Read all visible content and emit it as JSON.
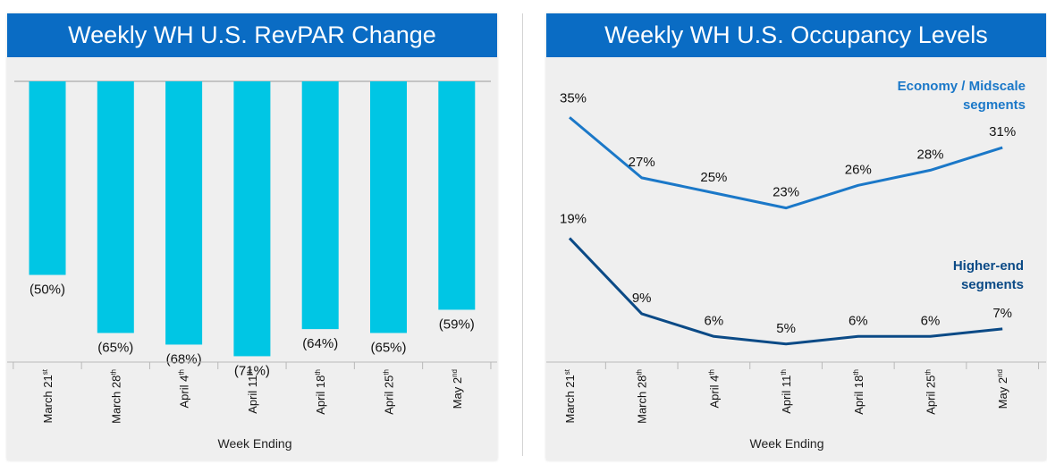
{
  "chart_data": [
    {
      "type": "bar",
      "title": "Weekly WH U.S. RevPAR Change",
      "xlabel": "Week Ending",
      "ylabel": "",
      "categories": [
        {
          "label": "March 21",
          "sup": "st"
        },
        {
          "label": "March 28",
          "sup": "th"
        },
        {
          "label": "April 4",
          "sup": "th"
        },
        {
          "label": "April 11",
          "sup": "th"
        },
        {
          "label": "April 18",
          "sup": "th"
        },
        {
          "label": "April 25",
          "sup": "th"
        },
        {
          "label": "May 2",
          "sup": "nd"
        }
      ],
      "values": [
        -50,
        -65,
        -68,
        -71,
        -64,
        -65,
        -59
      ],
      "labels": [
        "(50%)",
        "(65%)",
        "(68%)",
        "(71%)",
        "(64%)",
        "(65%)",
        "(59%)"
      ],
      "ylim": [
        -80,
        0
      ],
      "grid": false,
      "color": "#00c6e4"
    },
    {
      "type": "line",
      "title": "Weekly WH U.S. Occupancy Levels",
      "xlabel": "Week Ending",
      "ylabel": "",
      "categories": [
        {
          "label": "March 21",
          "sup": "st"
        },
        {
          "label": "March 28",
          "sup": "th"
        },
        {
          "label": "April 4",
          "sup": "th"
        },
        {
          "label": "April 11",
          "sup": "th"
        },
        {
          "label": "April 18",
          "sup": "th"
        },
        {
          "label": "April 25",
          "sup": "th"
        },
        {
          "label": "May 2",
          "sup": "nd"
        }
      ],
      "ylim": [
        0,
        40
      ],
      "grid": false,
      "series": [
        {
          "name_lines": [
            "Economy / Midscale",
            "segments"
          ],
          "values": [
            35,
            27,
            25,
            23,
            26,
            28,
            31
          ],
          "labels": [
            "35%",
            "27%",
            "25%",
            "23%",
            "26%",
            "28%",
            "31%"
          ],
          "color": "#1b78c8"
        },
        {
          "name_lines": [
            "Higher-end",
            "segments"
          ],
          "values": [
            19,
            9,
            6,
            5,
            6,
            6,
            7
          ],
          "labels": [
            "19%",
            "9%",
            "6%",
            "5%",
            "6%",
            "6%",
            "7%"
          ],
          "color": "#0b4a86"
        }
      ]
    }
  ]
}
